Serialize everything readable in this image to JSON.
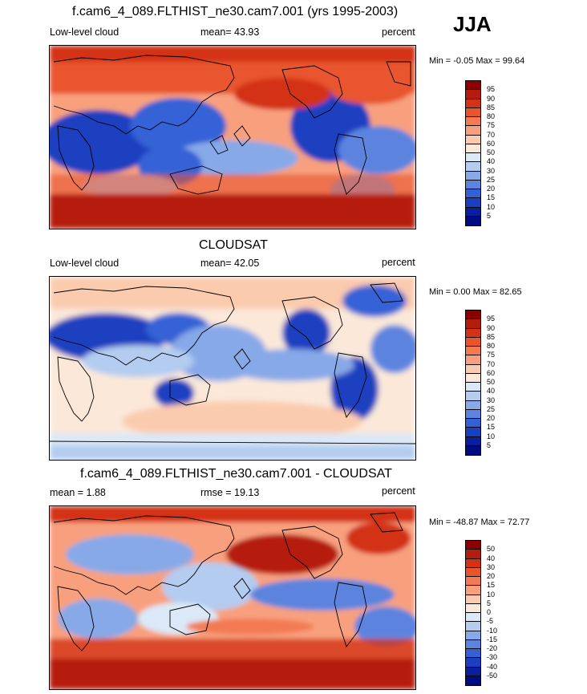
{
  "season": "JJA",
  "panels": [
    {
      "id": "model",
      "title": "f.cam6_4_089.FLTHIST_ne30.cam7.001 (yrs 1995-2003)",
      "left_label": "Low-level cloud",
      "mid_label": "mean=  43.93",
      "right_label": "percent",
      "minmax": "Min =  -0.05 Max =  99.64",
      "colorbar": "abs"
    },
    {
      "id": "obs",
      "title": "CLOUDSAT",
      "left_label": "Low-level cloud",
      "mid_label": "mean=  42.05",
      "right_label": "percent",
      "minmax": "Min =   0.00 Max =  82.65",
      "colorbar": "abs"
    },
    {
      "id": "diff",
      "title": "f.cam6_4_089.FLTHIST_ne30.cam7.001 - CLOUDSAT",
      "left_label": "mean =   1.88",
      "mid_label": "rmse =  19.13",
      "right_label": "percent",
      "minmax": "Min = -48.87 Max =  72.77",
      "colorbar": "diff"
    }
  ],
  "colorbars": {
    "abs": {
      "labels": [
        "95",
        "90",
        "85",
        "80",
        "75",
        "70",
        "60",
        "50",
        "40",
        "30",
        "25",
        "20",
        "15",
        "10",
        "5"
      ],
      "colors": [
        "#8b0000",
        "#b51c0c",
        "#d33216",
        "#e8542e",
        "#f37a52",
        "#f8a07e",
        "#fbcbae",
        "#fbe8d9",
        "#dbe8f7",
        "#b3ccf0",
        "#87a9e8",
        "#5b84df",
        "#3462d6",
        "#1a3fc0",
        "#0a1f9e",
        "#000c80"
      ]
    },
    "diff": {
      "labels": [
        "50",
        "40",
        "30",
        "20",
        "15",
        "10",
        "5",
        "0",
        "-5",
        "-10",
        "-15",
        "-20",
        "-30",
        "-40",
        "-50"
      ],
      "colors": [
        "#8b0000",
        "#b51c0c",
        "#d33216",
        "#e8542e",
        "#f37a52",
        "#f8a07e",
        "#fbcbae",
        "#fbe8d9",
        "#dbe8f7",
        "#b3ccf0",
        "#87a9e8",
        "#5b84df",
        "#3462d6",
        "#1a3fc0",
        "#0a1f9e",
        "#000c80"
      ]
    }
  }
}
